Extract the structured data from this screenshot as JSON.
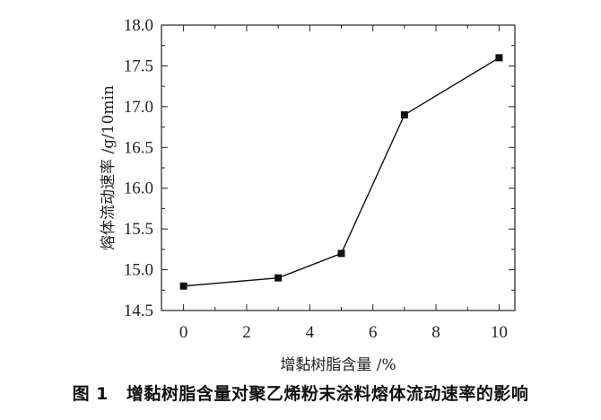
{
  "figure": {
    "caption_number": "图 1",
    "caption_text": "增黏树脂含量对聚乙烯粉末涂料熔体流动速率的影响"
  },
  "chart_data": {
    "type": "line",
    "xlabel": "增黏树脂含量 /%",
    "ylabel": "熔体流动速率 /g/10min",
    "xlim": [
      -0.7,
      10.5
    ],
    "ylim": [
      14.5,
      18.0
    ],
    "xticks": [
      0,
      2,
      4,
      6,
      8,
      10
    ],
    "xtick_labels": [
      "0",
      "2",
      "4",
      "6",
      "8",
      "10"
    ],
    "yticks": [
      14.5,
      15.0,
      15.5,
      16.0,
      16.5,
      17.0,
      17.5,
      18.0
    ],
    "ytick_labels": [
      "14.5",
      "15.0",
      "15.5",
      "16.0",
      "16.5",
      "17.0",
      "17.5",
      "18.0"
    ],
    "grid": false,
    "marker": "square",
    "line_color": "#111111",
    "series": [
      {
        "x": [
          0,
          3,
          5,
          7,
          10
        ],
        "values": [
          14.8,
          14.9,
          15.2,
          16.9,
          17.6
        ]
      }
    ]
  }
}
